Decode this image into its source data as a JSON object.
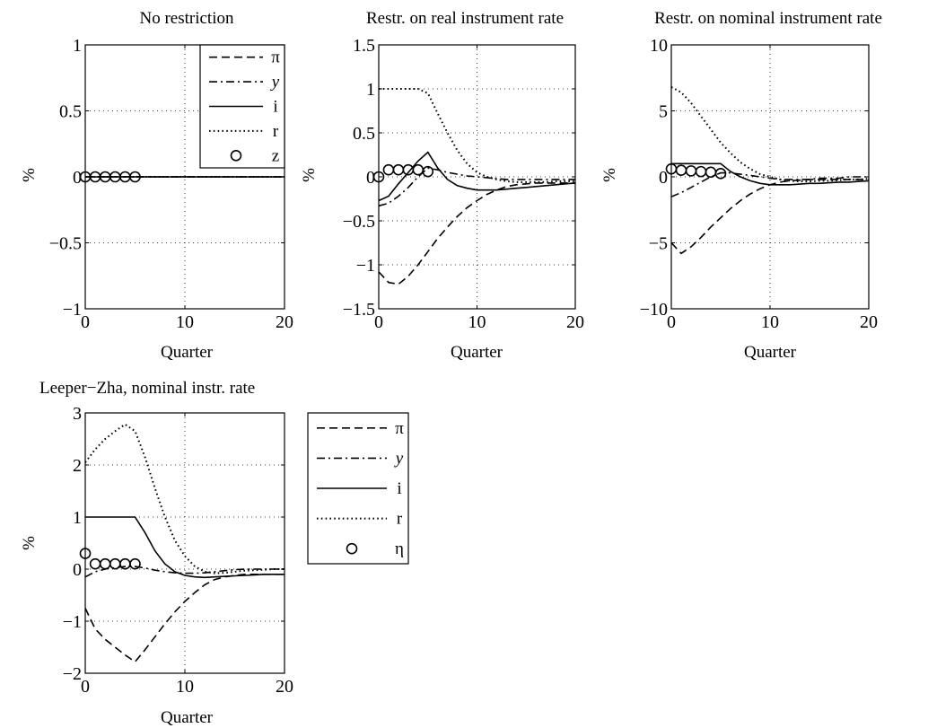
{
  "chart_data": [
    {
      "type": "line",
      "title": "No restriction",
      "xlabel": "Quarter",
      "ylabel": "%",
      "xlim": [
        0,
        20
      ],
      "ylim": [
        -1,
        1
      ],
      "xticks": [
        0,
        10,
        20
      ],
      "xtick_labels": [
        "0",
        "10",
        "20"
      ],
      "yticks": [
        -1,
        -0.5,
        0,
        0.5,
        1
      ],
      "ytick_labels": [
        "−1",
        "−0.5",
        "0",
        "0.5",
        "1"
      ],
      "grid": true,
      "legend_position": "top-right",
      "series": [
        {
          "name": "π",
          "style": "dashed",
          "x": [
            0,
            20
          ],
          "y": [
            0,
            0
          ]
        },
        {
          "name": "y",
          "style": "dashdot",
          "x": [
            0,
            20
          ],
          "y": [
            0,
            0
          ]
        },
        {
          "name": "i",
          "style": "solid",
          "x": [
            0,
            20
          ],
          "y": [
            0,
            0
          ]
        },
        {
          "name": "r",
          "style": "dotted",
          "x": [
            0,
            20
          ],
          "y": [
            0,
            0
          ]
        },
        {
          "name": "z",
          "style": "circles",
          "x": [
            0,
            1,
            2,
            3,
            4,
            5
          ],
          "y": [
            0,
            0,
            0,
            0,
            0,
            0
          ]
        }
      ]
    },
    {
      "type": "line",
      "title": "Restr. on real instrument rate",
      "xlabel": "Quarter",
      "ylabel": "%",
      "xlim": [
        0,
        20
      ],
      "ylim": [
        -1.5,
        1.5
      ],
      "xticks": [
        0,
        10,
        20
      ],
      "xtick_labels": [
        "0",
        "10",
        "20"
      ],
      "yticks": [
        -1.5,
        -1,
        -0.5,
        0,
        0.5,
        1,
        1.5
      ],
      "ytick_labels": [
        "−1.5",
        "−1",
        "−0.5",
        "0",
        "0.5",
        "1",
        "1.5"
      ],
      "grid": true,
      "series": [
        {
          "name": "π",
          "style": "dashed",
          "x": [
            0,
            1,
            2,
            3,
            4,
            5,
            6,
            7,
            8,
            9,
            10,
            11,
            12,
            13,
            14,
            15,
            16,
            17,
            18,
            19,
            20
          ],
          "y": [
            -1.08,
            -1.2,
            -1.22,
            -1.13,
            -1.0,
            -0.85,
            -0.7,
            -0.57,
            -0.45,
            -0.35,
            -0.27,
            -0.2,
            -0.15,
            -0.11,
            -0.09,
            -0.08,
            -0.07,
            -0.07,
            -0.07,
            -0.07,
            -0.07
          ]
        },
        {
          "name": "y",
          "style": "dashdot",
          "x": [
            0,
            1,
            2,
            3,
            4,
            5,
            6,
            7,
            8,
            9,
            10,
            11,
            12,
            13,
            14,
            15,
            16,
            17,
            18,
            19,
            20
          ],
          "y": [
            -0.33,
            -0.3,
            -0.22,
            -0.12,
            0.0,
            0.1,
            0.08,
            0.05,
            0.03,
            0.01,
            0.0,
            -0.01,
            -0.02,
            -0.03,
            -0.03,
            -0.03,
            -0.03,
            -0.03,
            -0.03,
            -0.03,
            -0.03
          ]
        },
        {
          "name": "i",
          "style": "solid",
          "x": [
            0,
            1,
            2,
            3,
            4,
            5,
            6,
            7,
            8,
            9,
            10,
            11,
            12,
            13,
            14,
            15,
            16,
            17,
            18,
            19,
            20
          ],
          "y": [
            -0.27,
            -0.22,
            -0.08,
            0.05,
            0.18,
            0.28,
            0.1,
            -0.03,
            -0.1,
            -0.13,
            -0.15,
            -0.15,
            -0.15,
            -0.14,
            -0.13,
            -0.12,
            -0.11,
            -0.1,
            -0.09,
            -0.08,
            -0.07
          ]
        },
        {
          "name": "r",
          "style": "dotted",
          "x": [
            0,
            1,
            2,
            3,
            4,
            5,
            6,
            7,
            8,
            9,
            10,
            11,
            12,
            13,
            14,
            15,
            16,
            17,
            18,
            19,
            20
          ],
          "y": [
            1.0,
            1.0,
            1.0,
            1.0,
            1.0,
            0.95,
            0.72,
            0.5,
            0.3,
            0.15,
            0.05,
            0.0,
            -0.03,
            -0.05,
            -0.06,
            -0.06,
            -0.06,
            -0.06,
            -0.05,
            -0.05,
            -0.05
          ]
        },
        {
          "name": "z",
          "style": "circles",
          "x": [
            0,
            1,
            2,
            3,
            4,
            5
          ],
          "y": [
            0.0,
            0.08,
            0.08,
            0.08,
            0.08,
            0.06
          ]
        }
      ]
    },
    {
      "type": "line",
      "title": "Restr. on nominal instrument rate",
      "xlabel": "Quarter",
      "ylabel": "%",
      "xlim": [
        0,
        20
      ],
      "ylim": [
        -10,
        10
      ],
      "xticks": [
        0,
        10,
        20
      ],
      "xtick_labels": [
        "0",
        "10",
        "20"
      ],
      "yticks": [
        -10,
        -5,
        0,
        5,
        10
      ],
      "ytick_labels": [
        "−10",
        "−5",
        "0",
        "5",
        "10"
      ],
      "grid": true,
      "series": [
        {
          "name": "π",
          "style": "dashed",
          "x": [
            0,
            1,
            2,
            3,
            4,
            5,
            6,
            7,
            8,
            9,
            10,
            11,
            12,
            13,
            14,
            15,
            16,
            17,
            18,
            19,
            20
          ],
          "y": [
            -5.0,
            -5.8,
            -5.3,
            -4.6,
            -3.8,
            -3.1,
            -2.4,
            -1.8,
            -1.3,
            -0.9,
            -0.6,
            -0.4,
            -0.3,
            -0.25,
            -0.2,
            -0.2,
            -0.2,
            -0.2,
            -0.2,
            -0.2,
            -0.2
          ]
        },
        {
          "name": "y",
          "style": "dashdot",
          "x": [
            0,
            1,
            2,
            3,
            4,
            5,
            6,
            7,
            8,
            9,
            10,
            11,
            12,
            13,
            14,
            15,
            16,
            17,
            18,
            19,
            20
          ],
          "y": [
            -1.5,
            -1.2,
            -0.8,
            -0.4,
            0.0,
            0.3,
            0.3,
            0.2,
            0.1,
            0.0,
            -0.1,
            -0.2,
            -0.2,
            -0.2,
            -0.2,
            -0.1,
            -0.1,
            -0.1,
            0.0,
            0.0,
            0.0
          ]
        },
        {
          "name": "i",
          "style": "solid",
          "x": [
            0,
            1,
            2,
            3,
            4,
            5,
            6,
            7,
            8,
            9,
            10,
            11,
            12,
            13,
            14,
            15,
            16,
            17,
            18,
            19,
            20
          ],
          "y": [
            1.0,
            1.0,
            1.0,
            1.0,
            1.0,
            1.0,
            0.4,
            0.0,
            -0.3,
            -0.5,
            -0.6,
            -0.6,
            -0.6,
            -0.55,
            -0.5,
            -0.5,
            -0.45,
            -0.4,
            -0.4,
            -0.35,
            -0.3
          ]
        },
        {
          "name": "r",
          "style": "dotted",
          "x": [
            0,
            1,
            2,
            3,
            4,
            5,
            6,
            7,
            8,
            9,
            10,
            11,
            12,
            13,
            14,
            15,
            16,
            17,
            18,
            19,
            20
          ],
          "y": [
            6.8,
            6.4,
            5.6,
            4.6,
            3.6,
            2.6,
            1.8,
            1.1,
            0.6,
            0.2,
            0.0,
            -0.2,
            -0.3,
            -0.35,
            -0.35,
            -0.3,
            -0.3,
            -0.25,
            -0.2,
            -0.2,
            -0.15
          ]
        },
        {
          "name": "z",
          "style": "circles",
          "x": [
            0,
            1,
            2,
            3,
            4,
            5
          ],
          "y": [
            0.6,
            0.5,
            0.45,
            0.4,
            0.35,
            0.25
          ]
        }
      ]
    },
    {
      "type": "line",
      "title": "Leeper−Zha, nominal instr. rate",
      "xlabel": "Quarter",
      "ylabel": "%",
      "xlim": [
        0,
        20
      ],
      "ylim": [
        -2,
        3
      ],
      "xticks": [
        0,
        10,
        20
      ],
      "xtick_labels": [
        "0",
        "10",
        "20"
      ],
      "yticks": [
        -2,
        -1,
        0,
        1,
        2,
        3
      ],
      "ytick_labels": [
        "−2",
        "−1",
        "0",
        "1",
        "2",
        "3"
      ],
      "grid": true,
      "legend_position": "outside-right",
      "series": [
        {
          "name": "π",
          "style": "dashed",
          "x": [
            0,
            1,
            2,
            3,
            4,
            5,
            6,
            7,
            8,
            9,
            10,
            11,
            12,
            13,
            14,
            15,
            16,
            17,
            18,
            19,
            20
          ],
          "y": [
            -0.75,
            -1.15,
            -1.35,
            -1.5,
            -1.65,
            -1.78,
            -1.55,
            -1.3,
            -1.05,
            -0.82,
            -0.62,
            -0.45,
            -0.3,
            -0.2,
            -0.15,
            -0.12,
            -0.1,
            -0.1,
            -0.1,
            -0.1,
            -0.1
          ]
        },
        {
          "name": "y",
          "style": "dashdot",
          "x": [
            0,
            1,
            2,
            3,
            4,
            5,
            6,
            7,
            8,
            9,
            10,
            11,
            12,
            13,
            14,
            15,
            16,
            17,
            18,
            19,
            20
          ],
          "y": [
            -0.15,
            -0.05,
            0.0,
            0.03,
            0.05,
            0.05,
            0.02,
            -0.02,
            -0.05,
            -0.07,
            -0.08,
            -0.08,
            -0.07,
            -0.05,
            -0.03,
            -0.01,
            0.0,
            0.0,
            0.0,
            0.0,
            0.0
          ]
        },
        {
          "name": "i",
          "style": "solid",
          "x": [
            0,
            1,
            2,
            3,
            4,
            5,
            6,
            7,
            8,
            9,
            10,
            11,
            12,
            13,
            14,
            15,
            16,
            17,
            18,
            19,
            20
          ],
          "y": [
            1.0,
            1.0,
            1.0,
            1.0,
            1.0,
            1.0,
            0.7,
            0.35,
            0.1,
            -0.05,
            -0.12,
            -0.15,
            -0.16,
            -0.15,
            -0.14,
            -0.13,
            -0.12,
            -0.11,
            -0.1,
            -0.1,
            -0.1
          ]
        },
        {
          "name": "r",
          "style": "dotted",
          "x": [
            0,
            1,
            2,
            3,
            4,
            5,
            6,
            7,
            8,
            9,
            10,
            11,
            12,
            13,
            14,
            15,
            16,
            17,
            18,
            19,
            20
          ],
          "y": [
            2.05,
            2.3,
            2.5,
            2.65,
            2.78,
            2.65,
            2.15,
            1.55,
            1.0,
            0.55,
            0.25,
            0.05,
            -0.05,
            -0.08,
            -0.07,
            -0.05,
            -0.03,
            -0.02,
            -0.01,
            0.0,
            0.0
          ]
        },
        {
          "name": "η",
          "style": "circles",
          "x": [
            0,
            1,
            2,
            3,
            4,
            5
          ],
          "y": [
            0.3,
            0.1,
            0.1,
            0.1,
            0.1,
            0.1
          ]
        }
      ]
    }
  ]
}
